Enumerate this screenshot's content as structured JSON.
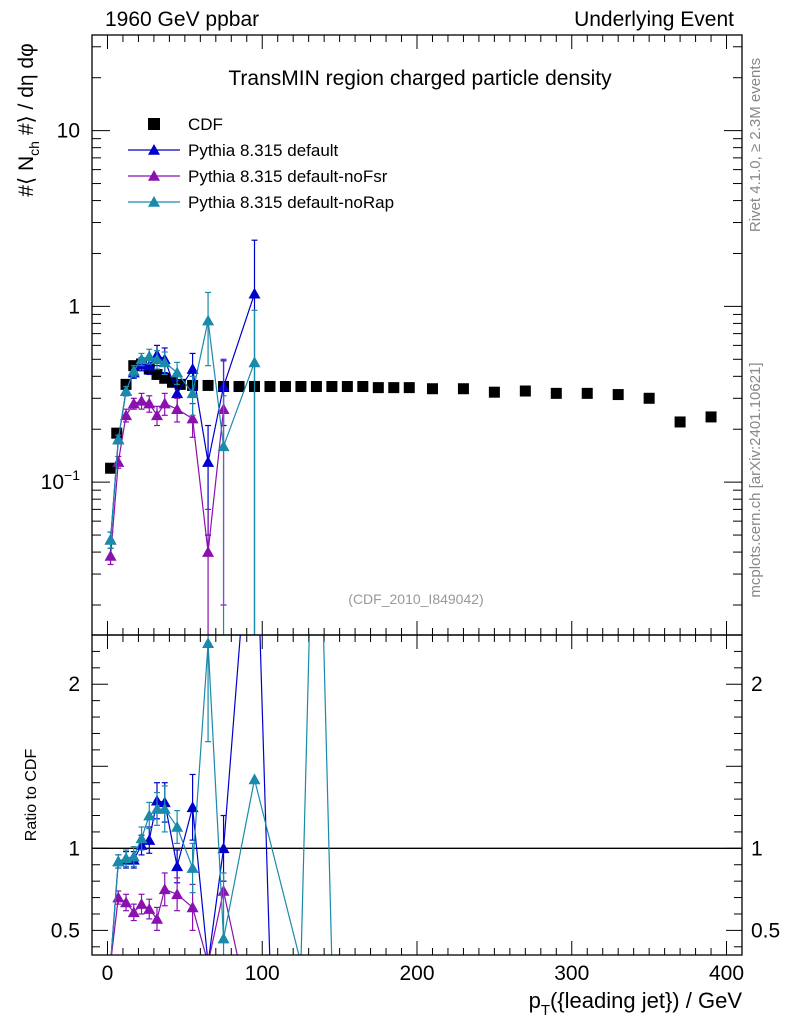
{
  "header": {
    "left": "1960 GeV ppbar",
    "right": "Underlying Event"
  },
  "side_labels": {
    "rivet": "Rivet 4.1.0, ≥ 2.3M events",
    "mcplots": "mcplots.cern.ch [arXiv:2401.10621]"
  },
  "chart_data": [
    {
      "type": "scatter",
      "panel": "main",
      "title": "TransMIN region charged particle density",
      "ylabel": "#⟨ N_ch #⟩ / dη dφ",
      "yscale": "log",
      "ylim": [
        0.0135,
        35
      ],
      "xlim": [
        -10,
        410
      ],
      "yticks": [
        {
          "value": 0.1,
          "base": "10",
          "exp": "−1"
        },
        {
          "value": 1,
          "base": "1",
          "exp": ""
        },
        {
          "value": 10,
          "base": "10",
          "exp": ""
        }
      ],
      "watermark": "(CDF_2010_I849042)",
      "legend_position": "top-left",
      "series": [
        {
          "name": "CDF",
          "color": "#000000",
          "marker": "square",
          "line": false,
          "x": [
            2,
            6,
            12,
            17,
            22,
            27,
            32,
            37,
            42,
            47,
            55,
            65,
            75,
            85,
            95,
            105,
            115,
            125,
            135,
            145,
            155,
            165,
            175,
            185,
            195,
            210,
            230,
            250,
            270,
            290,
            310,
            330,
            350,
            370,
            390
          ],
          "y": [
            0.12,
            0.19,
            0.36,
            0.46,
            0.47,
            0.44,
            0.41,
            0.39,
            0.37,
            0.36,
            0.355,
            0.355,
            0.35,
            0.35,
            0.35,
            0.35,
            0.35,
            0.35,
            0.35,
            0.35,
            0.35,
            0.35,
            0.345,
            0.345,
            0.345,
            0.34,
            0.34,
            0.325,
            0.33,
            0.32,
            0.32,
            0.315,
            0.3,
            0.22,
            0.235
          ]
        },
        {
          "name": "Pythia 8.315 default",
          "color": "#0000cc",
          "marker": "triangle",
          "line": true,
          "x": [
            2,
            7,
            12,
            17,
            22,
            27,
            32,
            37,
            45,
            55,
            65,
            75,
            95
          ],
          "y": [
            0.047,
            0.175,
            0.33,
            0.42,
            0.47,
            0.46,
            0.53,
            0.5,
            0.32,
            0.44,
            0.13,
            0.35,
            1.18
          ],
          "err": [
            0.005,
            0.01,
            0.02,
            0.03,
            0.04,
            0.05,
            0.07,
            0.08,
            0.06,
            0.1,
            0.08,
            0.14,
            1.2
          ]
        },
        {
          "name": "Pythia 8.315 default-noFsr",
          "color": "#8b10b0",
          "marker": "triangle",
          "line": true,
          "x": [
            2,
            7,
            12,
            17,
            22,
            27,
            32,
            37,
            45,
            55,
            65,
            75
          ],
          "y": [
            0.038,
            0.13,
            0.24,
            0.28,
            0.29,
            0.28,
            0.24,
            0.28,
            0.26,
            0.23,
            0.04,
            0.26
          ],
          "err": [
            0.004,
            0.01,
            0.02,
            0.02,
            0.03,
            0.03,
            0.03,
            0.04,
            0.04,
            0.05,
            0.03,
            0.24
          ]
        },
        {
          "name": "Pythia 8.315 default-noRap",
          "color": "#1a8aaa",
          "marker": "triangle",
          "line": true,
          "x": [
            2,
            7,
            12,
            17,
            22,
            27,
            32,
            37,
            45,
            55,
            65,
            75,
            95
          ],
          "y": [
            0.047,
            0.175,
            0.33,
            0.43,
            0.5,
            0.52,
            0.5,
            0.48,
            0.42,
            0.32,
            0.83,
            0.16,
            0.48
          ],
          "err": [
            0.005,
            0.01,
            0.02,
            0.03,
            0.04,
            0.05,
            0.06,
            0.07,
            0.06,
            0.08,
            0.37,
            0.15,
            0.47
          ]
        }
      ]
    },
    {
      "type": "line",
      "panel": "ratio",
      "ylabel": "Ratio to CDF",
      "xlabel": "p_T({leading jet}) / GeV",
      "ylim": [
        0.35,
        2.3
      ],
      "xlim": [
        -10,
        410
      ],
      "yticks": [
        0.5,
        1,
        2
      ],
      "xticks": [
        0,
        100,
        200,
        300,
        400
      ],
      "reference": 1,
      "series": [
        {
          "name": "Pythia 8.315 default",
          "color": "#0000cc",
          "x": [
            2,
            7,
            12,
            17,
            22,
            27,
            32,
            37,
            45,
            55,
            65,
            75,
            95,
            105
          ],
          "y": [
            0.3,
            0.92,
            0.93,
            0.93,
            1.02,
            1.05,
            1.29,
            1.28,
            0.89,
            1.25,
            0.3,
            1.0,
            3.4,
            0.3
          ],
          "err": [
            0,
            0.04,
            0.05,
            0.05,
            0.06,
            0.08,
            0.11,
            0.12,
            0.1,
            0.2,
            0,
            0.2,
            0,
            0
          ]
        },
        {
          "name": "Pythia 8.315 default-noFsr",
          "color": "#8b10b0",
          "x": [
            2,
            7,
            12,
            17,
            22,
            27,
            32,
            37,
            45,
            55,
            65,
            75,
            85
          ],
          "y": [
            0.3,
            0.7,
            0.67,
            0.61,
            0.66,
            0.63,
            0.57,
            0.75,
            0.72,
            0.64,
            0.3,
            0.74,
            0.3
          ],
          "err": [
            0,
            0.04,
            0.05,
            0.05,
            0.06,
            0.06,
            0.07,
            0.1,
            0.1,
            0.14,
            0,
            0,
            0
          ]
        },
        {
          "name": "Pythia 8.315 default-noRap",
          "color": "#1a8aaa",
          "x": [
            2,
            7,
            12,
            17,
            22,
            27,
            32,
            37,
            45,
            55,
            65,
            75,
            95,
            125,
            135,
            145
          ],
          "y": [
            0.3,
            0.92,
            0.94,
            0.95,
            1.06,
            1.2,
            1.24,
            1.24,
            1.13,
            0.88,
            2.25,
            0.45,
            1.42,
            0.3,
            4.0,
            0.3
          ],
          "err": [
            0,
            0.04,
            0.05,
            0.06,
            0.07,
            0.08,
            0.1,
            0.14,
            0.1,
            0.15,
            0.6,
            0.4,
            0,
            0,
            0,
            0
          ]
        }
      ]
    }
  ]
}
